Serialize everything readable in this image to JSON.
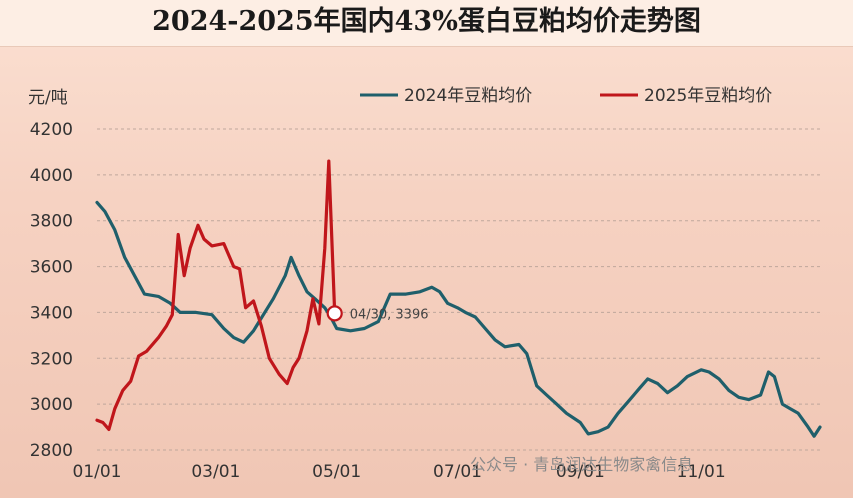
{
  "chart_data": {
    "type": "line",
    "title": "2024-2025年国内43%蛋白豆粕均价走势图",
    "ylabel": "元/吨",
    "ylim": [
      2800,
      4200
    ],
    "yticks": [
      2800,
      3000,
      3200,
      3400,
      3600,
      3800,
      4000,
      4200
    ],
    "xlim": [
      "01-01",
      "12-31"
    ],
    "xticks": [
      {
        "label": "01/01",
        "date": "01-01"
      },
      {
        "label": "03/01",
        "date": "03-01"
      },
      {
        "label": "05/01",
        "date": "05-01"
      },
      {
        "label": "07/01",
        "date": "07-01"
      },
      {
        "label": "09/01",
        "date": "09-01"
      },
      {
        "label": "11/01",
        "date": "11-01"
      }
    ],
    "grid": "horizontal dashed",
    "legend": "top-right",
    "series": [
      {
        "name": "2024年豆粕均价",
        "color": "#1f5f6b",
        "points": [
          [
            "01-01",
            3880
          ],
          [
            "01-05",
            3840
          ],
          [
            "01-10",
            3760
          ],
          [
            "01-15",
            3640
          ],
          [
            "01-20",
            3560
          ],
          [
            "01-25",
            3480
          ],
          [
            "02-01",
            3470
          ],
          [
            "02-07",
            3440
          ],
          [
            "02-12",
            3400
          ],
          [
            "02-20",
            3400
          ],
          [
            "02-28",
            3390
          ],
          [
            "03-05",
            3330
          ],
          [
            "03-10",
            3290
          ],
          [
            "03-15",
            3270
          ],
          [
            "03-20",
            3320
          ],
          [
            "03-25",
            3390
          ],
          [
            "03-30",
            3460
          ],
          [
            "04-05",
            3560
          ],
          [
            "04-08",
            3640
          ],
          [
            "04-12",
            3560
          ],
          [
            "04-16",
            3490
          ],
          [
            "04-20",
            3460
          ],
          [
            "04-25",
            3420
          ],
          [
            "04-28",
            3380
          ],
          [
            "05-01",
            3330
          ],
          [
            "05-08",
            3320
          ],
          [
            "05-15",
            3330
          ],
          [
            "05-22",
            3360
          ],
          [
            "05-28",
            3480
          ],
          [
            "06-05",
            3480
          ],
          [
            "06-12",
            3490
          ],
          [
            "06-18",
            3510
          ],
          [
            "06-22",
            3490
          ],
          [
            "06-26",
            3440
          ],
          [
            "07-01",
            3420
          ],
          [
            "07-05",
            3400
          ],
          [
            "07-10",
            3380
          ],
          [
            "07-15",
            3330
          ],
          [
            "07-20",
            3280
          ],
          [
            "07-25",
            3250
          ],
          [
            "08-01",
            3260
          ],
          [
            "08-05",
            3220
          ],
          [
            "08-10",
            3080
          ],
          [
            "08-15",
            3040
          ],
          [
            "08-20",
            3000
          ],
          [
            "08-25",
            2960
          ],
          [
            "09-01",
            2920
          ],
          [
            "09-05",
            2870
          ],
          [
            "09-10",
            2880
          ],
          [
            "09-15",
            2900
          ],
          [
            "09-20",
            2960
          ],
          [
            "09-25",
            3010
          ],
          [
            "10-01",
            3070
          ],
          [
            "10-05",
            3110
          ],
          [
            "10-10",
            3090
          ],
          [
            "10-15",
            3050
          ],
          [
            "10-20",
            3080
          ],
          [
            "10-25",
            3120
          ],
          [
            "11-01",
            3150
          ],
          [
            "11-05",
            3140
          ],
          [
            "11-10",
            3110
          ],
          [
            "11-15",
            3060
          ],
          [
            "11-20",
            3030
          ],
          [
            "11-25",
            3020
          ],
          [
            "12-01",
            3040
          ],
          [
            "12-05",
            3140
          ],
          [
            "12-08",
            3120
          ],
          [
            "12-12",
            3000
          ],
          [
            "12-16",
            2980
          ],
          [
            "12-20",
            2960
          ],
          [
            "12-25",
            2900
          ],
          [
            "12-28",
            2860
          ],
          [
            "12-31",
            2900
          ]
        ]
      },
      {
        "name": "2025年豆粕均价",
        "color": "#c0161b",
        "points": [
          [
            "01-01",
            2930
          ],
          [
            "01-04",
            2920
          ],
          [
            "01-07",
            2890
          ],
          [
            "01-10",
            2980
          ],
          [
            "01-14",
            3060
          ],
          [
            "01-18",
            3100
          ],
          [
            "01-22",
            3210
          ],
          [
            "01-26",
            3230
          ],
          [
            "02-01",
            3290
          ],
          [
            "02-05",
            3340
          ],
          [
            "02-08",
            3390
          ],
          [
            "02-11",
            3740
          ],
          [
            "02-14",
            3560
          ],
          [
            "02-17",
            3680
          ],
          [
            "02-21",
            3780
          ],
          [
            "02-24",
            3720
          ],
          [
            "02-28",
            3690
          ],
          [
            "03-05",
            3700
          ],
          [
            "03-10",
            3600
          ],
          [
            "03-13",
            3590
          ],
          [
            "03-16",
            3420
          ],
          [
            "03-20",
            3450
          ],
          [
            "03-24",
            3340
          ],
          [
            "03-28",
            3200
          ],
          [
            "04-02",
            3130
          ],
          [
            "04-06",
            3090
          ],
          [
            "04-09",
            3160
          ],
          [
            "04-12",
            3200
          ],
          [
            "04-16",
            3320
          ],
          [
            "04-19",
            3460
          ],
          [
            "04-22",
            3350
          ],
          [
            "04-25",
            3680
          ],
          [
            "04-27",
            4060
          ],
          [
            "04-30",
            3396
          ]
        ]
      }
    ],
    "annotation": {
      "text": "04/30, 3396",
      "series": "2025年豆粕均价",
      "x": "04-30",
      "y": 3396
    },
    "watermark": "公众号 · 青岛润达生物家禽信息"
  }
}
